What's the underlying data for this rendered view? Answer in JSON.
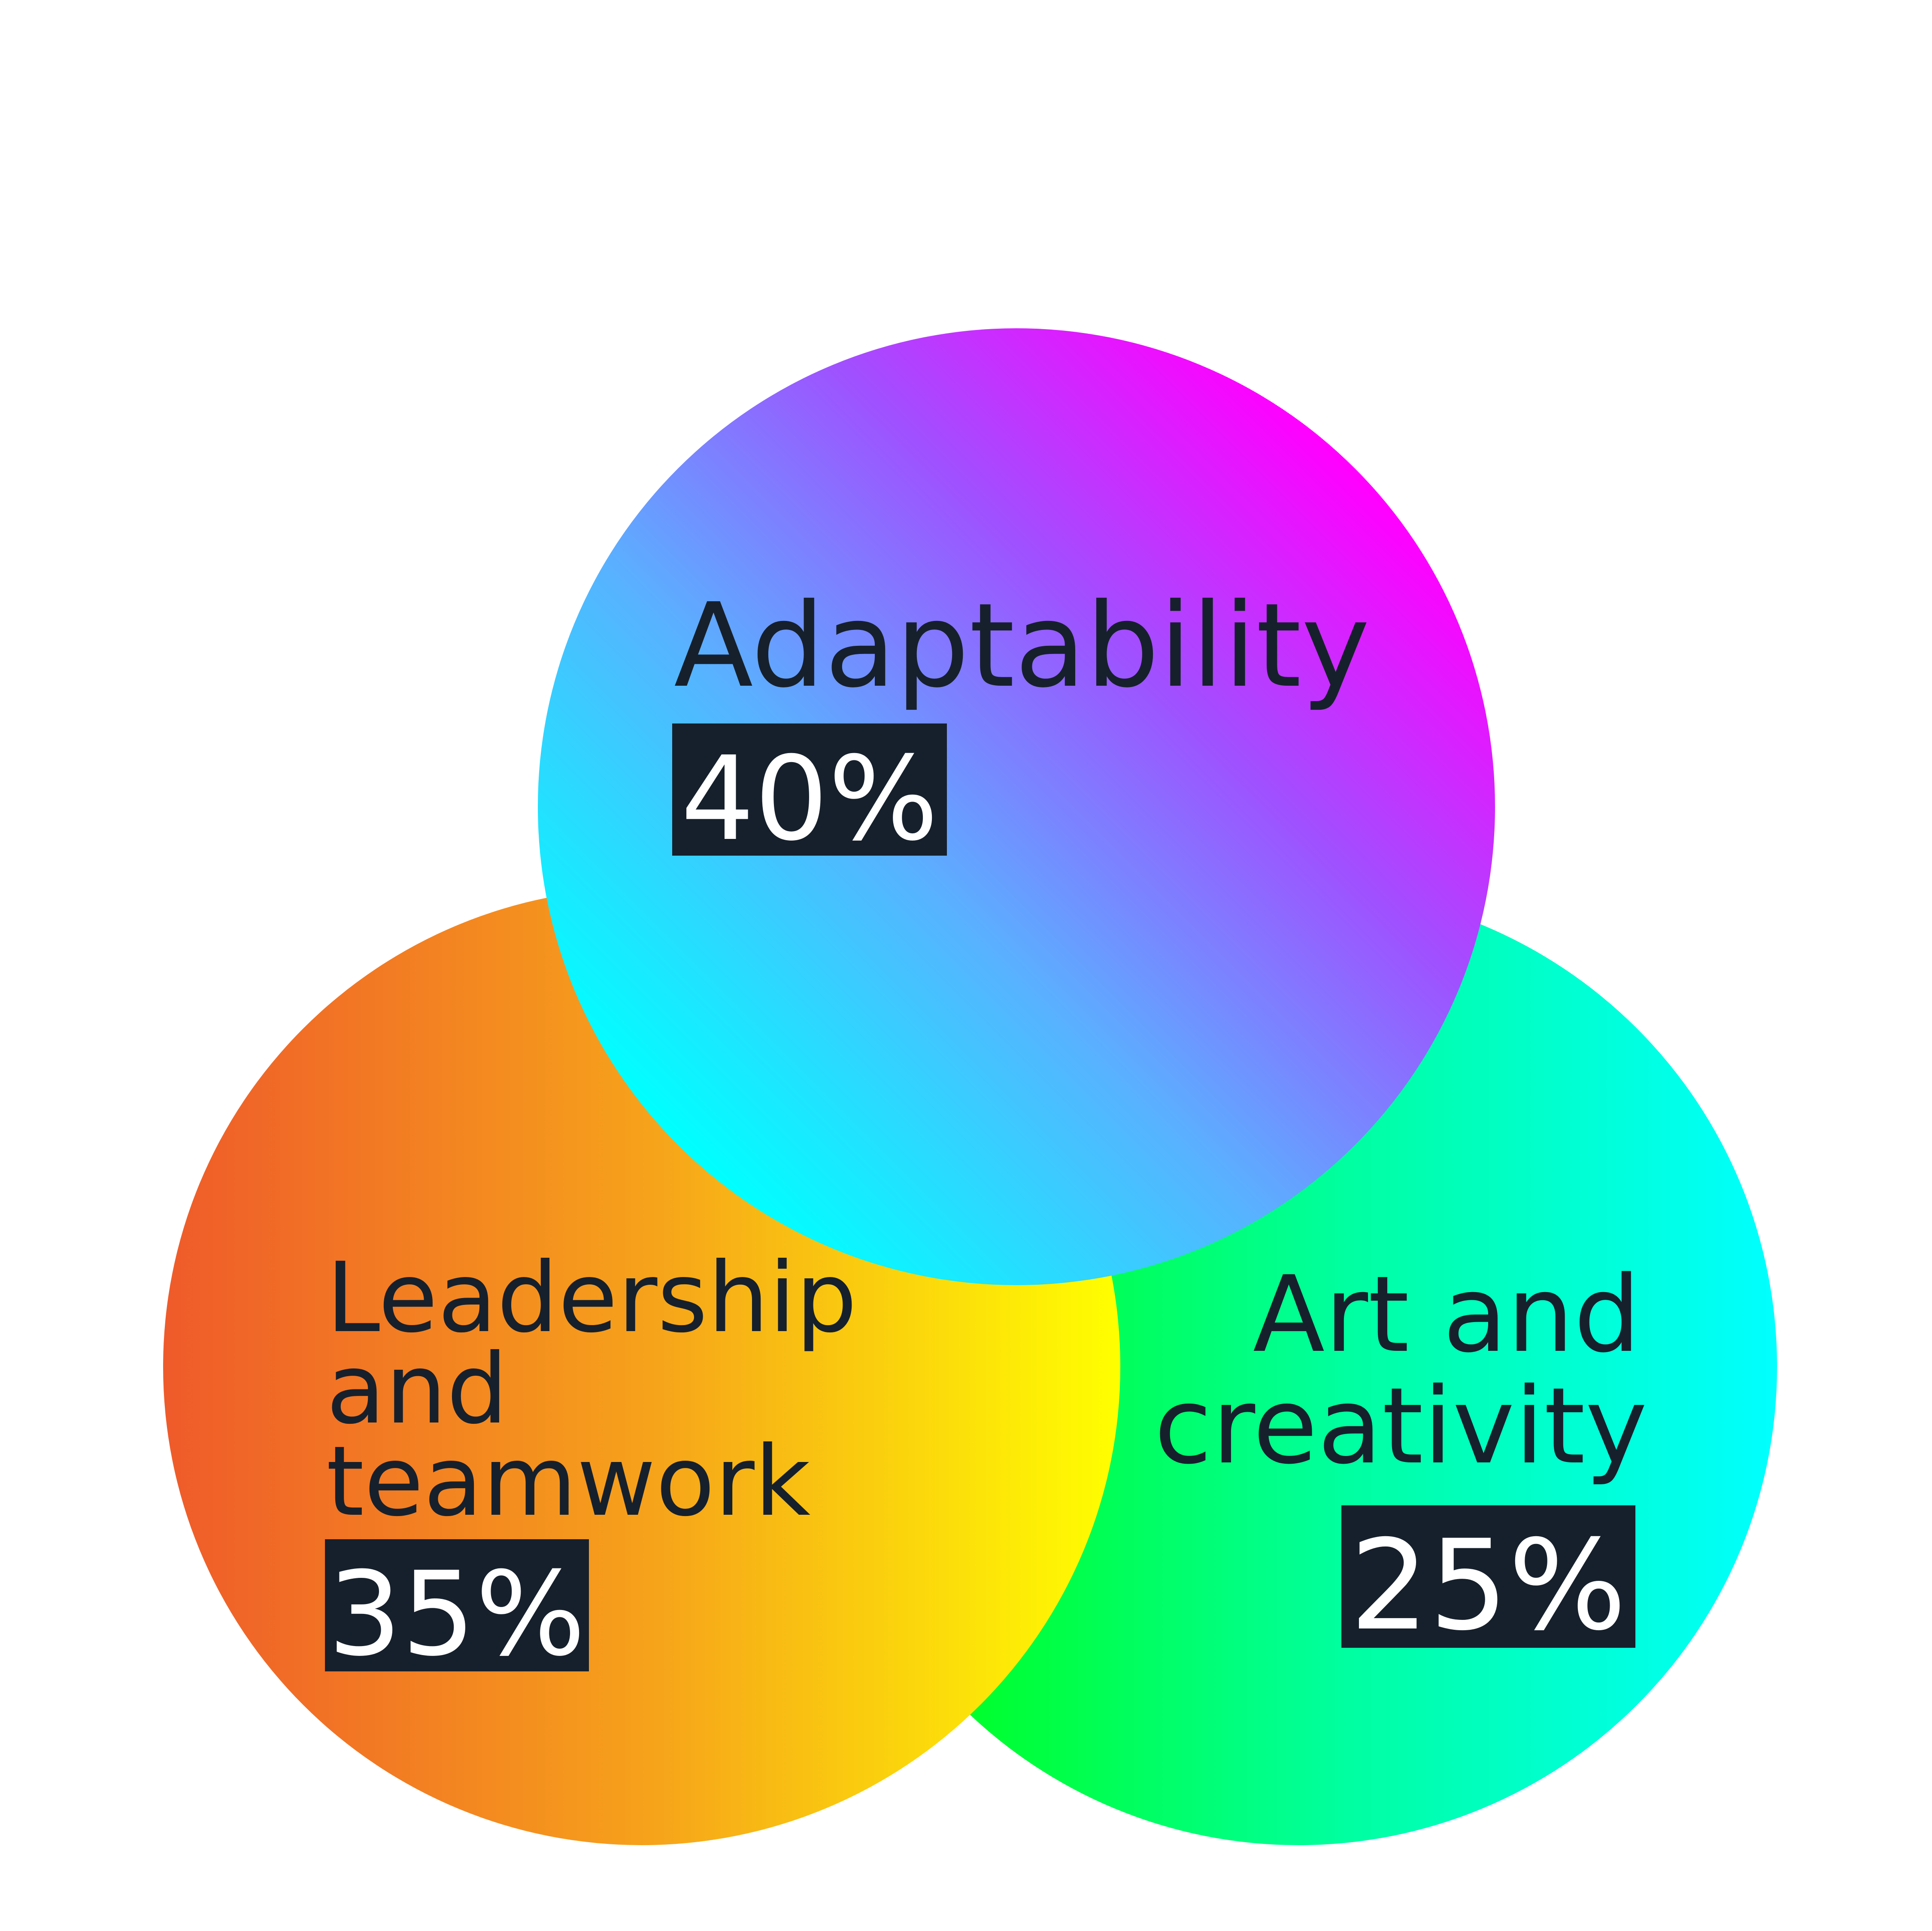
{
  "circles": [
    {
      "label_lines": [
        "Leadership",
        "and",
        "teamwork"
      ],
      "percent": "35%",
      "gradient": [
        "#ef5a2a",
        "#f6a11b",
        "#ffff00"
      ]
    },
    {
      "label_lines": [
        "Art and",
        "creativity"
      ],
      "percent": "25%",
      "gradient": [
        "#00ff2a",
        "#00ffa0",
        "#00ffff"
      ]
    },
    {
      "label_lines": [
        "Adaptability"
      ],
      "percent": "40%",
      "gradient": [
        "#00ffff",
        "#5ab0ff",
        "#a050ff",
        "#ff00ff"
      ]
    }
  ],
  "colors": {
    "label_text": "#16202c",
    "percent_box": "#16202c",
    "percent_text": "#ffffff",
    "background": "#ffffff"
  }
}
